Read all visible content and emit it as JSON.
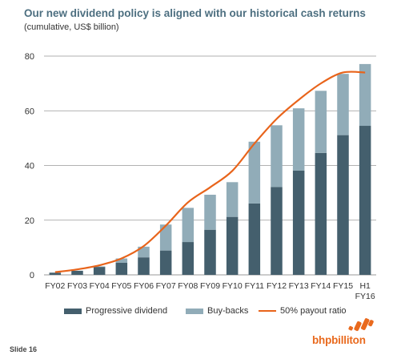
{
  "title": "Our new dividend policy is aligned with our historical cash returns",
  "subtitle": "(cumulative, US$ billion)",
  "slide_label": "Slide 16",
  "logo_text": "bhpbilliton",
  "colors": {
    "dividend": "#445f6d",
    "buybacks": "#91acb8",
    "payout_line": "#e8641b",
    "axis": "#999999",
    "logo": "#e96a1e"
  },
  "chart_data": {
    "type": "bar",
    "stacked": true,
    "categories": [
      [
        "FY02"
      ],
      [
        "FY03"
      ],
      [
        "FY04"
      ],
      [
        "FY05"
      ],
      [
        "FY06"
      ],
      [
        "FY07"
      ],
      [
        "FY08"
      ],
      [
        "FY09"
      ],
      [
        "FY10"
      ],
      [
        "FY11"
      ],
      [
        "FY12"
      ],
      [
        "FY13"
      ],
      [
        "FY14"
      ],
      [
        "FY15"
      ],
      [
        "H1",
        "FY16"
      ]
    ],
    "series": [
      {
        "name": "Progressive dividend",
        "type": "bar",
        "values": [
          0.8,
          1.5,
          2.9,
          4.4,
          6.4,
          8.9,
          12.0,
          16.5,
          21.2,
          26.1,
          32.1,
          38.1,
          44.6,
          51.1,
          54.5
        ]
      },
      {
        "name": "Buy-backs",
        "type": "bar",
        "values": [
          0.0,
          0.0,
          0.2,
          1.6,
          3.9,
          9.5,
          12.5,
          12.8,
          12.7,
          22.6,
          22.6,
          22.8,
          22.7,
          22.4,
          22.6
        ]
      },
      {
        "name": "50% payout ratio",
        "type": "line",
        "values": [
          1.0,
          2.0,
          3.5,
          6.0,
          10.5,
          18.0,
          26.5,
          32.0,
          38.0,
          48.0,
          57.0,
          64.0,
          70.0,
          74.0,
          74.0
        ]
      }
    ],
    "yticks": [
      0,
      20,
      40,
      60,
      80
    ],
    "ylim": [
      0,
      80
    ],
    "grid": true,
    "legend_position": "bottom"
  }
}
